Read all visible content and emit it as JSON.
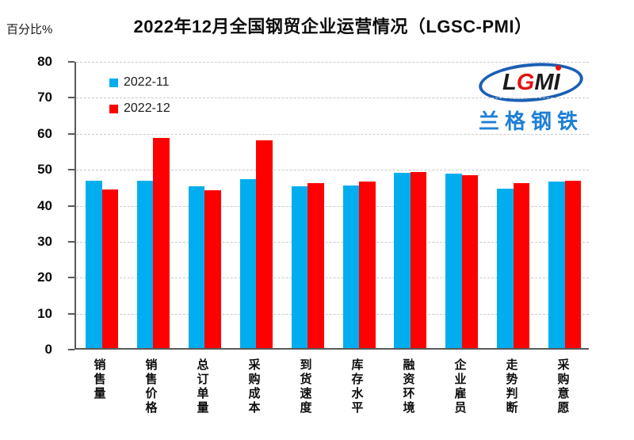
{
  "chart_data": {
    "type": "bar",
    "title": "2022年12月全国钢贸企业运营情况（LGSC-PMI）",
    "ylabel": "百分比%",
    "xlabel": "",
    "ylim": [
      0,
      80
    ],
    "yticks": [
      0,
      10,
      20,
      30,
      40,
      50,
      60,
      70,
      80
    ],
    "grid": true,
    "gridline_style": "dashed",
    "legend_position": "top-left-inside",
    "categories": [
      "销售量",
      "销售价格",
      "总订单量",
      "采购成本",
      "到货速度",
      "库存水平",
      "融资环境",
      "企业雇员",
      "走势判断",
      "采购意愿"
    ],
    "series": [
      {
        "name": "2022-11",
        "color": "#00AEEF",
        "values": [
          46.4,
          46.4,
          45.0,
          47.0,
          44.9,
          45.2,
          48.6,
          48.4,
          44.4,
          46.2
        ]
      },
      {
        "name": "2022-12",
        "color": "#FF0000",
        "values": [
          44.0,
          58.3,
          43.9,
          57.8,
          45.9,
          46.2,
          49.0,
          48.0,
          45.9,
          46.6
        ]
      }
    ]
  },
  "logo": {
    "acronym_parts": [
      "L",
      "G",
      "M",
      "I"
    ],
    "company_name": "兰格钢铁",
    "ring_color": "#1a5fb4",
    "accent_color": "#e8110f",
    "name_color": "#1d7fd6"
  }
}
